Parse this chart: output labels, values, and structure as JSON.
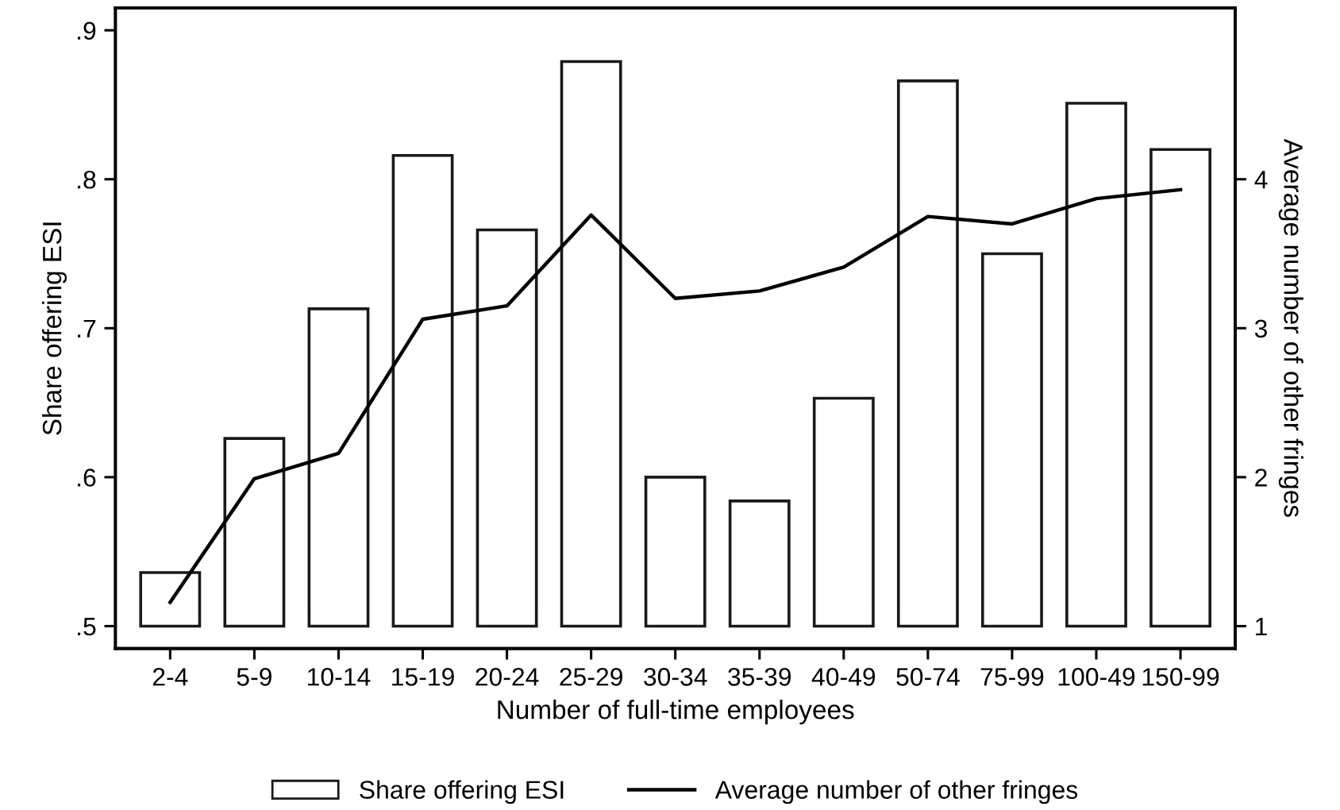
{
  "chart_data": {
    "type": "bar",
    "xlabel": "Number of full-time employees",
    "ylabel": "Share offering ESI",
    "y2label": "Average number of other fringes",
    "categories": [
      "2-4",
      "5-9",
      "10-14",
      "15-19",
      "20-24",
      "25-29",
      "30-34",
      "35-39",
      "40-49",
      "50-74",
      "75-99",
      "100-49",
      "150-99"
    ],
    "series": [
      {
        "name": "Share offering ESI",
        "color": "#ffffff",
        "base": [
          0.5,
          0.5,
          0.5,
          0.5,
          0.5,
          0.5,
          0.5,
          0.5,
          0.5,
          0.5,
          0.5,
          0.5,
          0.5
        ],
        "values": [
          0.036,
          0.126,
          0.213,
          0.316,
          0.266,
          0.379,
          0.1,
          0.084,
          0.153,
          0.366,
          0.25,
          0.351,
          0.32
        ]
      },
      {
        "name": "Average number of other fringes",
        "type": "line",
        "axis": "y2",
        "color": "#000000",
        "values": [
          1.16,
          1.99,
          2.16,
          3.06,
          3.15,
          3.76,
          3.2,
          3.25,
          3.41,
          3.75,
          3.7,
          3.87,
          3.93
        ]
      }
    ],
    "ylim": [
      0.485,
      0.915
    ],
    "yticks": [
      {
        "value": 0.5,
        "label": ".5"
      },
      {
        "value": 0.6,
        "label": ".6"
      },
      {
        "value": 0.7,
        "label": ".7"
      },
      {
        "value": 0.8,
        "label": ".8"
      },
      {
        "value": 0.9,
        "label": ".9"
      }
    ],
    "y2lim": [
      0.85,
      5.15
    ],
    "y2ticks": [
      1,
      2,
      3,
      4
    ],
    "grid": false,
    "legend": "bottom",
    "marker": "none",
    "line_style": "solid"
  }
}
